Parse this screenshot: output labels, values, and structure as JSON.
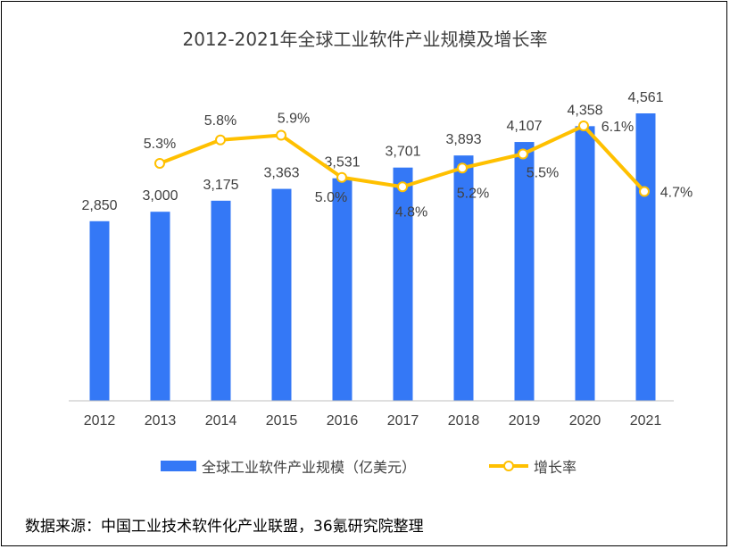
{
  "title": "2012-2021年全球工业软件产业规模及增长率",
  "source": "数据来源：中国工业技术软件化产业联盟，36氪研究院整理",
  "colors": {
    "bar": "#3478F6",
    "line": "#FFC000",
    "text": "#404040",
    "axis": "#BFBFBF"
  },
  "chart_data": {
    "type": "bar",
    "categories": [
      "2012",
      "2013",
      "2014",
      "2015",
      "2016",
      "2017",
      "2018",
      "2019",
      "2020",
      "2021"
    ],
    "series": [
      {
        "name": "全球工业软件产业规模（亿美元）",
        "type": "bar",
        "values": [
          2850,
          3000,
          3175,
          3363,
          3531,
          3701,
          3893,
          4107,
          4358,
          4561
        ],
        "labels": [
          "2,850",
          "3,000",
          "3,175",
          "3,363",
          "3,531",
          "3,701",
          "3,893",
          "4,107",
          "4,358",
          "4,561"
        ]
      },
      {
        "name": "增长率",
        "type": "line",
        "values": [
          null,
          5.3,
          5.8,
          5.9,
          5.0,
          4.8,
          5.2,
          5.5,
          6.1,
          4.7
        ],
        "labels": [
          "",
          "5.3%",
          "5.8%",
          "5.9%",
          "5.0%",
          "4.8%",
          "5.2%",
          "5.5%",
          "6.1%",
          "4.7%"
        ]
      }
    ],
    "ylim": [
      0,
      4800
    ],
    "y2lim": [
      0,
      6.6
    ],
    "grid": false,
    "legend": "bottom"
  }
}
